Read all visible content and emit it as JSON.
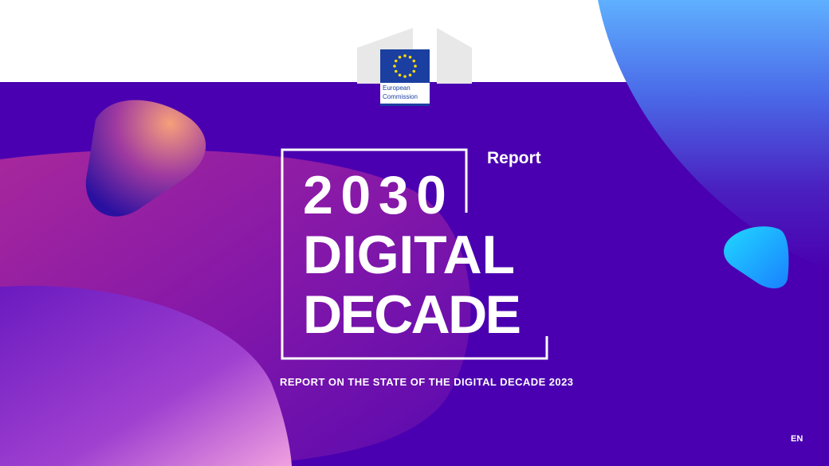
{
  "logo": {
    "line1": "European",
    "line2": "Commission"
  },
  "label": "Report",
  "title": {
    "line1": "2030",
    "line2": "DIGITAL",
    "line3": "DECADE"
  },
  "subtitle": "REPORT ON THE STATE OF THE DIGITAL DECADE 2023",
  "language": "EN"
}
